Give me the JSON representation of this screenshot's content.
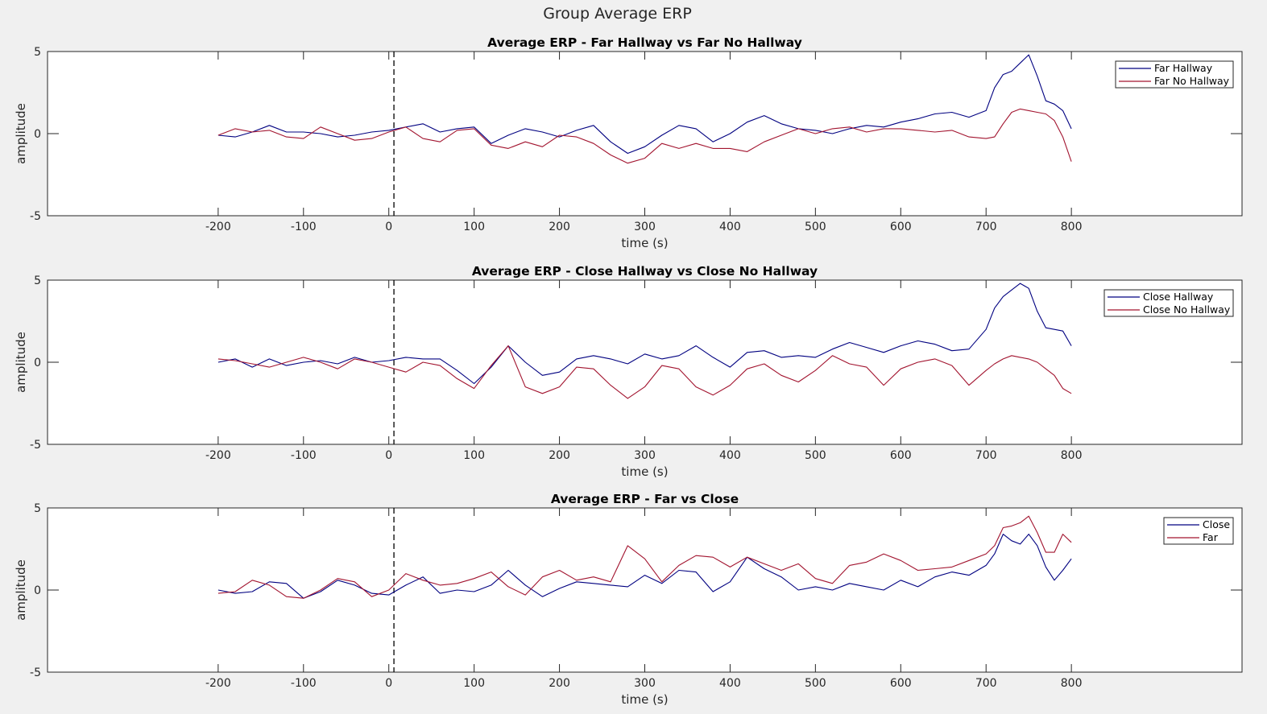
{
  "figure": {
    "title": "Group Average ERP"
  },
  "colors": {
    "blue": "#000080",
    "red": "#a2142f"
  },
  "chart_data": [
    {
      "type": "line",
      "title": "Average ERP - Far Hallway vs Far No Hallway",
      "xlabel": "time (s)",
      "ylabel": "amplitude",
      "xlim": [
        -400,
        1000
      ],
      "ylim": [
        -5,
        5
      ],
      "xticks": [
        -200,
        -100,
        0,
        100,
        200,
        300,
        400,
        500,
        600,
        700,
        800
      ],
      "yticks": [
        -5,
        0,
        5
      ],
      "vline_x": 6,
      "grid": false,
      "legend_position": "top-right",
      "x": [
        -200,
        -180,
        -160,
        -140,
        -120,
        -100,
        -80,
        -60,
        -40,
        -20,
        0,
        20,
        40,
        60,
        80,
        100,
        120,
        140,
        160,
        180,
        200,
        220,
        240,
        260,
        280,
        300,
        320,
        340,
        360,
        380,
        400,
        420,
        440,
        460,
        480,
        500,
        520,
        540,
        560,
        580,
        600,
        620,
        640,
        660,
        680,
        700,
        710,
        720,
        730,
        740,
        750,
        760,
        770,
        780,
        790,
        800
      ],
      "series": [
        {
          "name": "Far Hallway",
          "color": "#000080",
          "values": [
            -0.1,
            -0.2,
            0.1,
            0.5,
            0.1,
            0.1,
            0.0,
            -0.2,
            -0.1,
            0.1,
            0.2,
            0.4,
            0.6,
            0.1,
            0.3,
            0.4,
            -0.6,
            -0.1,
            0.3,
            0.1,
            -0.2,
            0.2,
            0.5,
            -0.5,
            -1.2,
            -0.8,
            -0.1,
            0.5,
            0.3,
            -0.5,
            0.0,
            0.7,
            1.1,
            0.6,
            0.3,
            0.2,
            0.0,
            0.3,
            0.5,
            0.4,
            0.7,
            0.9,
            1.2,
            1.3,
            1.0,
            1.4,
            2.8,
            3.6,
            3.8,
            4.3,
            4.8,
            3.5,
            2.0,
            1.8,
            1.4,
            0.3
          ]
        },
        {
          "name": "Far No Hallway",
          "color": "#a2142f",
          "values": [
            -0.1,
            0.3,
            0.1,
            0.2,
            -0.2,
            -0.3,
            0.4,
            0.0,
            -0.4,
            -0.3,
            0.1,
            0.4,
            -0.3,
            -0.5,
            0.2,
            0.3,
            -0.7,
            -0.9,
            -0.5,
            -0.8,
            -0.1,
            -0.2,
            -0.6,
            -1.3,
            -1.8,
            -1.5,
            -0.6,
            -0.9,
            -0.6,
            -0.9,
            -0.9,
            -1.1,
            -0.5,
            -0.1,
            0.3,
            0.0,
            0.3,
            0.4,
            0.1,
            0.3,
            0.3,
            0.2,
            0.1,
            0.2,
            -0.2,
            -0.3,
            -0.2,
            0.6,
            1.3,
            1.5,
            1.4,
            1.3,
            1.2,
            0.8,
            -0.2,
            -1.7
          ]
        }
      ]
    },
    {
      "type": "line",
      "title": "Average ERP - Close Hallway vs Close No Hallway",
      "xlabel": "time (s)",
      "ylabel": "amplitude",
      "xlim": [
        -400,
        1000
      ],
      "ylim": [
        -5,
        5
      ],
      "xticks": [
        -200,
        -100,
        0,
        100,
        200,
        300,
        400,
        500,
        600,
        700,
        800
      ],
      "yticks": [
        -5,
        0,
        5
      ],
      "vline_x": 6,
      "grid": false,
      "legend_position": "top-right",
      "x": [
        -200,
        -180,
        -160,
        -140,
        -120,
        -100,
        -80,
        -60,
        -40,
        -20,
        0,
        20,
        40,
        60,
        80,
        100,
        120,
        140,
        160,
        180,
        200,
        220,
        240,
        260,
        280,
        300,
        320,
        340,
        360,
        380,
        400,
        420,
        440,
        460,
        480,
        500,
        520,
        540,
        560,
        580,
        600,
        620,
        640,
        660,
        680,
        700,
        710,
        720,
        730,
        740,
        750,
        760,
        770,
        780,
        790,
        800
      ],
      "series": [
        {
          "name": "Close Hallway",
          "color": "#000080",
          "values": [
            0.0,
            0.2,
            -0.3,
            0.2,
            -0.2,
            0.0,
            0.1,
            -0.1,
            0.3,
            0.0,
            0.1,
            0.3,
            0.2,
            0.2,
            -0.5,
            -1.3,
            -0.3,
            1.0,
            0.0,
            -0.8,
            -0.6,
            0.2,
            0.4,
            0.2,
            -0.1,
            0.5,
            0.2,
            0.4,
            1.0,
            0.3,
            -0.3,
            0.6,
            0.7,
            0.3,
            0.4,
            0.3,
            0.8,
            1.2,
            0.9,
            0.6,
            1.0,
            1.3,
            1.1,
            0.7,
            0.8,
            2.0,
            3.3,
            4.0,
            4.4,
            4.8,
            4.5,
            3.1,
            2.1,
            2.0,
            1.9,
            1.0
          ]
        },
        {
          "name": "Close No Hallway",
          "color": "#a2142f",
          "values": [
            0.2,
            0.1,
            -0.1,
            -0.3,
            0.0,
            0.3,
            0.0,
            -0.4,
            0.2,
            0.0,
            -0.3,
            -0.6,
            0.0,
            -0.2,
            -1.0,
            -1.6,
            -0.2,
            1.0,
            -1.5,
            -1.9,
            -1.5,
            -0.3,
            -0.4,
            -1.4,
            -2.2,
            -1.5,
            -0.2,
            -0.4,
            -1.5,
            -2.0,
            -1.4,
            -0.4,
            -0.1,
            -0.8,
            -1.2,
            -0.5,
            0.4,
            -0.1,
            -0.3,
            -1.4,
            -0.4,
            0.0,
            0.2,
            -0.2,
            -1.4,
            -0.5,
            -0.1,
            0.2,
            0.4,
            0.3,
            0.2,
            0.0,
            -0.4,
            -0.8,
            -1.6,
            -1.9
          ]
        }
      ]
    },
    {
      "type": "line",
      "title": "Average ERP - Far vs Close",
      "xlabel": "time (s)",
      "ylabel": "amplitude",
      "xlim": [
        -400,
        1000
      ],
      "ylim": [
        -5,
        5
      ],
      "xticks": [
        -200,
        -100,
        0,
        100,
        200,
        300,
        400,
        500,
        600,
        700,
        800
      ],
      "yticks": [
        -5,
        0,
        5
      ],
      "vline_x": 6,
      "grid": false,
      "legend_position": "top-right",
      "x": [
        -200,
        -180,
        -160,
        -140,
        -120,
        -100,
        -80,
        -60,
        -40,
        -20,
        0,
        20,
        40,
        60,
        80,
        100,
        120,
        140,
        160,
        180,
        200,
        220,
        240,
        260,
        280,
        300,
        320,
        340,
        360,
        380,
        400,
        420,
        440,
        460,
        480,
        500,
        520,
        540,
        560,
        580,
        600,
        620,
        640,
        660,
        680,
        700,
        710,
        720,
        730,
        740,
        750,
        760,
        770,
        780,
        790,
        800
      ],
      "series": [
        {
          "name": "Close",
          "color": "#000080",
          "values": [
            0.0,
            -0.2,
            -0.1,
            0.5,
            0.4,
            -0.5,
            -0.1,
            0.6,
            0.3,
            -0.2,
            -0.3,
            0.3,
            0.8,
            -0.2,
            0.0,
            -0.1,
            0.3,
            1.2,
            0.3,
            -0.4,
            0.1,
            0.5,
            0.4,
            0.3,
            0.2,
            0.9,
            0.4,
            1.2,
            1.1,
            -0.1,
            0.5,
            2.0,
            1.3,
            0.8,
            0.0,
            0.2,
            0.0,
            0.4,
            0.2,
            0.0,
            0.6,
            0.2,
            0.8,
            1.1,
            0.9,
            1.5,
            2.2,
            3.4,
            3.0,
            2.8,
            3.4,
            2.7,
            1.4,
            0.6,
            1.2,
            1.9
          ]
        },
        {
          "name": "Far",
          "color": "#a2142f",
          "values": [
            -0.2,
            -0.1,
            0.6,
            0.3,
            -0.4,
            -0.5,
            0.0,
            0.7,
            0.5,
            -0.4,
            0.0,
            1.0,
            0.6,
            0.3,
            0.4,
            0.7,
            1.1,
            0.2,
            -0.3,
            0.8,
            1.2,
            0.6,
            0.8,
            0.5,
            2.7,
            1.9,
            0.5,
            1.5,
            2.1,
            2.0,
            1.4,
            2.0,
            1.6,
            1.2,
            1.6,
            0.7,
            0.4,
            1.5,
            1.7,
            2.2,
            1.8,
            1.2,
            1.3,
            1.4,
            1.8,
            2.2,
            2.7,
            3.8,
            3.9,
            4.1,
            4.5,
            3.5,
            2.3,
            2.3,
            3.4,
            2.9
          ]
        }
      ]
    }
  ]
}
